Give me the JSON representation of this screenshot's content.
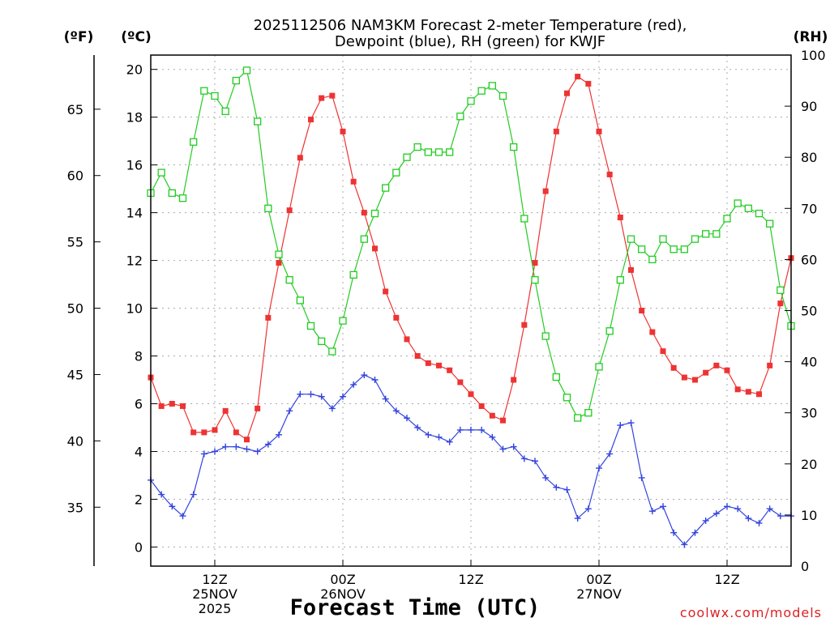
{
  "title_line1": "2025112506 NAM3KM Forecast 2-meter Temperature (red),",
  "title_line2": "Dewpoint (blue), RH (green) for KWJF",
  "unit_f": "(ºF)",
  "unit_c": "(ºC)",
  "unit_rh": "(RH)",
  "xlabel": "Forecast Time (UTC)",
  "watermark": "coolwx.com/models",
  "colors": {
    "temp": "#ee3333",
    "dewpoint": "#3344dd",
    "rh": "#22cc22",
    "grid": "#aaaaaa"
  },
  "chart_data": {
    "type": "line",
    "x_unit": "forecast hour (0 = 2025-11-25 06Z)",
    "x": [
      0,
      1,
      2,
      3,
      4,
      5,
      6,
      7,
      8,
      9,
      10,
      11,
      12,
      13,
      14,
      15,
      16,
      17,
      18,
      19,
      20,
      21,
      22,
      23,
      24,
      25,
      26,
      27,
      28,
      29,
      30,
      31,
      32,
      33,
      34,
      35,
      36,
      37,
      38,
      39,
      40,
      41,
      42,
      43,
      44,
      45,
      46,
      47,
      48,
      49,
      50,
      51,
      52,
      53,
      54,
      55,
      56,
      57,
      58,
      59,
      60
    ],
    "xlim": [
      0,
      60
    ],
    "x_ticks": [
      {
        "hour": 6,
        "lines": [
          "12Z",
          "25NOV",
          "2025"
        ]
      },
      {
        "hour": 18,
        "lines": [
          "00Z",
          "26NOV"
        ]
      },
      {
        "hour": 30,
        "lines": [
          "12Z"
        ]
      },
      {
        "hour": 42,
        "lines": [
          "00Z",
          "27NOV"
        ]
      },
      {
        "hour": 54,
        "lines": [
          "12Z"
        ]
      }
    ],
    "ylim_celsius": [
      -0.8,
      20.6
    ],
    "y_ticks_celsius": [
      0,
      2,
      4,
      6,
      8,
      10,
      12,
      14,
      16,
      18,
      20
    ],
    "y_ticks_fahrenheit": [
      35,
      40,
      45,
      50,
      55,
      60,
      65
    ],
    "ylim_rh": [
      0,
      100
    ],
    "y_ticks_rh": [
      0,
      10,
      20,
      30,
      40,
      50,
      60,
      70,
      80,
      90,
      100
    ],
    "series": [
      {
        "name": "Temperature",
        "unit": "°C",
        "axis": "celsius",
        "marker": "filled-square",
        "values": [
          7.1,
          5.9,
          6.0,
          5.9,
          4.8,
          4.8,
          4.9,
          5.7,
          4.8,
          4.5,
          5.8,
          9.6,
          11.9,
          14.1,
          16.3,
          17.9,
          18.8,
          18.9,
          17.4,
          15.3,
          14.0,
          12.5,
          10.7,
          9.6,
          8.7,
          8.0,
          7.7,
          7.6,
          7.4,
          6.9,
          6.4,
          5.9,
          5.5,
          5.3,
          7.0,
          9.3,
          11.9,
          14.9,
          17.4,
          19.0,
          19.7,
          19.4,
          17.4,
          15.6,
          13.8,
          11.6,
          9.9,
          9.0,
          8.2,
          7.5,
          7.1,
          7.0,
          7.3,
          7.6,
          7.4,
          6.6,
          6.5,
          6.4,
          7.6,
          10.2,
          12.1
        ]
      },
      {
        "name": "Dewpoint",
        "unit": "°C",
        "axis": "celsius",
        "marker": "plus",
        "values": [
          2.8,
          2.2,
          1.7,
          1.3,
          2.2,
          3.9,
          4.0,
          4.2,
          4.2,
          4.1,
          4.0,
          4.3,
          4.7,
          5.7,
          6.4,
          6.4,
          6.3,
          5.8,
          6.3,
          6.8,
          7.2,
          7.0,
          6.2,
          5.7,
          5.4,
          5.0,
          4.7,
          4.6,
          4.4,
          4.9,
          4.9,
          4.9,
          4.6,
          4.1,
          4.2,
          3.7,
          3.6,
          2.9,
          2.5,
          2.4,
          1.2,
          1.6,
          3.3,
          3.9,
          5.1,
          5.2,
          2.9,
          1.5,
          1.7,
          0.6,
          0.1,
          0.6,
          1.1,
          1.4,
          1.7,
          1.6,
          1.2,
          1.0,
          1.6,
          1.3,
          1.3
        ]
      },
      {
        "name": "RH",
        "unit": "%",
        "axis": "rh",
        "marker": "open-square",
        "values": [
          73,
          77,
          73,
          72,
          83,
          93,
          92,
          89,
          95,
          97,
          87,
          70,
          61,
          56,
          52,
          47,
          44,
          42,
          48,
          57,
          64,
          69,
          74,
          77,
          80,
          82,
          81,
          81,
          81,
          88,
          91,
          93,
          94,
          92,
          82,
          68,
          56,
          45,
          37,
          33,
          29,
          30,
          39,
          46,
          56,
          64,
          62,
          60,
          64,
          62,
          62,
          64,
          65,
          65,
          68,
          71,
          70,
          69,
          67,
          54,
          47
        ]
      }
    ]
  }
}
